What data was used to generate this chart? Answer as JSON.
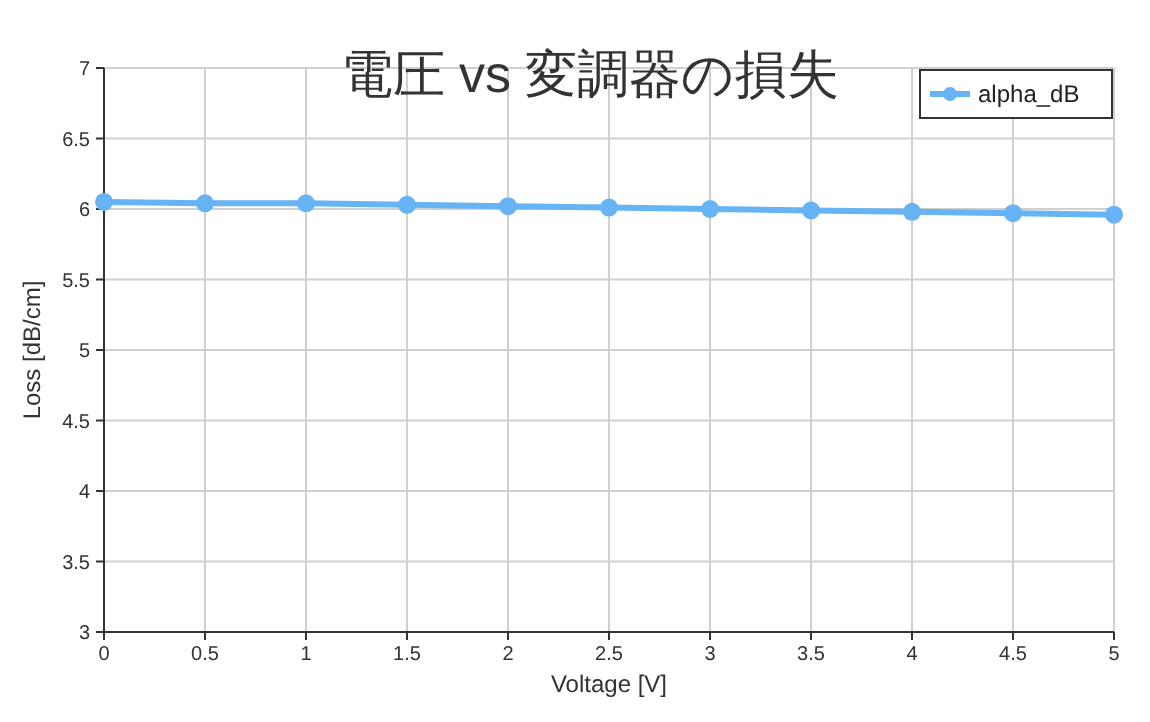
{
  "chart_data": {
    "type": "line",
    "title": "電圧 vs 変調器の損失",
    "xlabel": "Voltage [V]",
    "ylabel": "Loss [dB/cm]",
    "x": [
      0,
      0.5,
      1,
      1.5,
      2,
      2.5,
      3,
      3.5,
      4,
      4.5,
      5
    ],
    "series": [
      {
        "name": "alpha_dB",
        "color": "#66b3f5",
        "values": [
          6.05,
          6.04,
          6.04,
          6.03,
          6.02,
          6.01,
          6.0,
          5.99,
          5.98,
          5.97,
          5.96
        ]
      }
    ],
    "xlim": [
      0,
      5
    ],
    "xticks": [
      0,
      0.5,
      1,
      1.5,
      2,
      2.5,
      3,
      3.5,
      4,
      4.5,
      5
    ],
    "ylim": [
      3,
      7
    ],
    "yticks": [
      3,
      3.5,
      4,
      4.5,
      5,
      5.5,
      6,
      6.5,
      7
    ],
    "grid": true,
    "legend": "top right",
    "marker": "circle",
    "line_style": "solid"
  }
}
